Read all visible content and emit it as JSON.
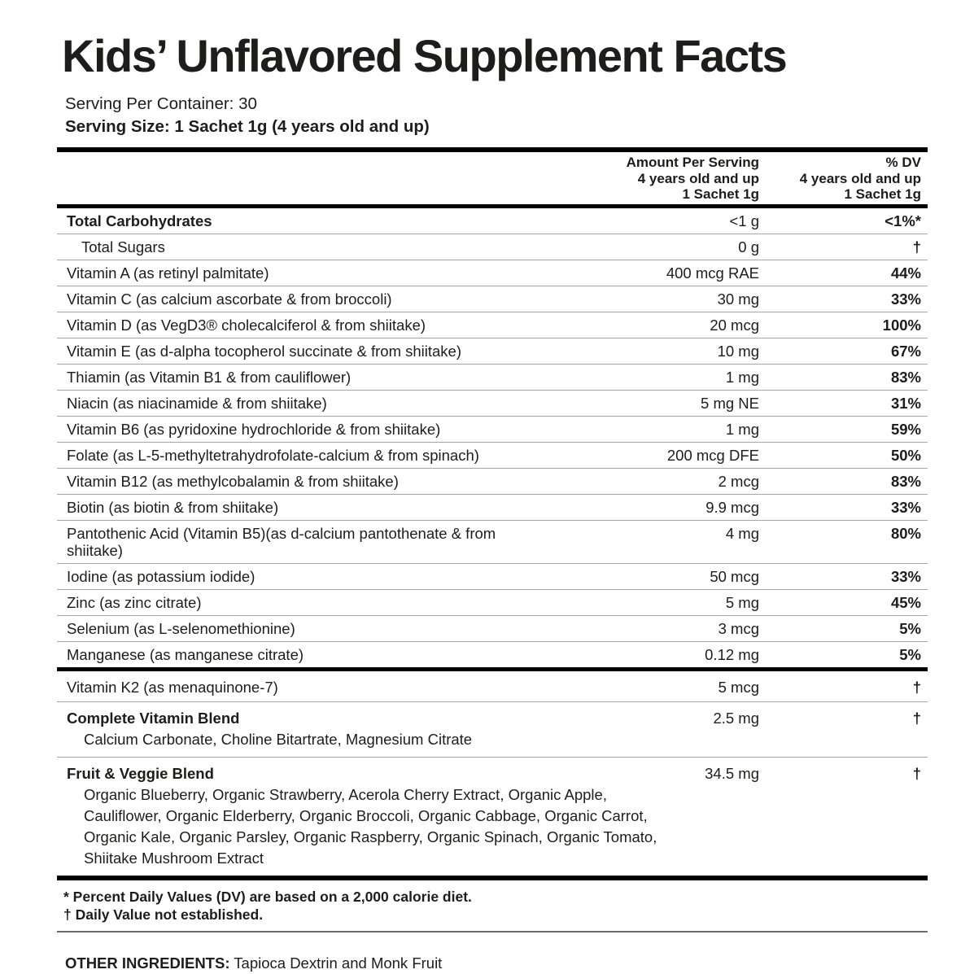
{
  "page": {
    "title": "Kids’ Unflavored Supplement Facts",
    "serving_per_container": "Serving Per Container: 30",
    "serving_size": "Serving Size: 1 Sachet 1g (4 years old and up)"
  },
  "table": {
    "header": {
      "amount_lines": [
        "Amount Per Serving",
        "4 years old and up",
        "1 Sachet 1g"
      ],
      "dv_lines": [
        "% DV",
        "4 years old and up",
        "1 Sachet 1g"
      ]
    },
    "main_rows": [
      {
        "name": "Total Carbohydrates",
        "amount": "<1 g",
        "dv": "<1%*",
        "bold": true
      },
      {
        "name": "Total Sugars",
        "amount": "0 g",
        "dv": "†",
        "indent": true
      },
      {
        "name": "Vitamin A (as retinyl palmitate)",
        "amount": "400 mcg RAE",
        "dv": "44%"
      },
      {
        "name": "Vitamin C (as calcium ascorbate & from broccoli)",
        "amount": "30 mg",
        "dv": "33%"
      },
      {
        "name": "Vitamin D (as VegD3® cholecalciferol & from shiitake)",
        "amount": "20 mcg",
        "dv": "100%"
      },
      {
        "name": "Vitamin E (as d-alpha tocopherol succinate & from shiitake)",
        "amount": "10 mg",
        "dv": "67%"
      },
      {
        "name": "Thiamin (as Vitamin B1 & from cauliflower)",
        "amount": "1 mg",
        "dv": "83%"
      },
      {
        "name": "Niacin (as niacinamide & from shiitake)",
        "amount": "5 mg NE",
        "dv": "31%"
      },
      {
        "name": "Vitamin B6 (as pyridoxine hydrochloride & from shiitake)",
        "amount": "1 mg",
        "dv": "59%"
      },
      {
        "name": "Folate (as L-5-methyltetrahydrofolate-calcium & from spinach)",
        "amount": "200 mcg DFE",
        "dv": "50%"
      },
      {
        "name": "Vitamin B12 (as methylcobalamin & from shiitake)",
        "amount": "2 mcg",
        "dv": "83%"
      },
      {
        "name": "Biotin (as biotin & from shiitake)",
        "amount": "9.9 mcg",
        "dv": "33%"
      },
      {
        "name": "Pantothenic Acid (Vitamin B5)(as d-calcium pantothenate & from shiitake)",
        "amount": "4 mg",
        "dv": "80%"
      },
      {
        "name": "Iodine (as potassium iodide)",
        "amount": "50 mcg",
        "dv": "33%"
      },
      {
        "name": "Zinc (as zinc citrate)",
        "amount": "5 mg",
        "dv": "45%"
      },
      {
        "name": "Selenium (as L-selenomethionine)",
        "amount": "3 mcg",
        "dv": "5%"
      },
      {
        "name": "Manganese (as manganese citrate)",
        "amount": "0.12 mg",
        "dv": "5%"
      }
    ],
    "secondary_rows": [
      {
        "name": "Vitamin K2 (as menaquinone-7)",
        "amount": "5 mcg",
        "dv": "†"
      },
      {
        "name": "Complete Vitamin Blend",
        "amount": "2.5 mg",
        "dv": "†",
        "bold": true,
        "sub_lines": [
          "Calcium Carbonate, Choline Bitartrate, Magnesium Citrate"
        ]
      },
      {
        "name": "Fruit & Veggie Blend",
        "amount": "34.5 mg",
        "dv": "†",
        "bold": true,
        "sub_lines": [
          "Organic Blueberry, Organic Strawberry, Acerola Cherry Extract, Organic Apple,",
          "Cauliflower, Organic Elderberry, Organic Broccoli, Organic Cabbage, Organic Carrot,",
          "Organic Kale, Organic Parsley, Organic Raspberry, Organic Spinach, Organic Tomato,",
          "Shiitake Mushroom Extract"
        ]
      }
    ]
  },
  "footnotes": [
    "* Percent Daily Values (DV) are based on a 2,000 calorie diet.",
    "† Daily Value not established."
  ],
  "other_ingredients": {
    "label": "OTHER INGREDIENTS:",
    "text": " Tapioca Dextrin and Monk Fruit"
  },
  "colors": {
    "text": "#1d1d1b",
    "thick_rule": "#000000",
    "row_separator": "#a6a6a6",
    "mid_rule": "#6b6b6b",
    "background": "#ffffff"
  }
}
